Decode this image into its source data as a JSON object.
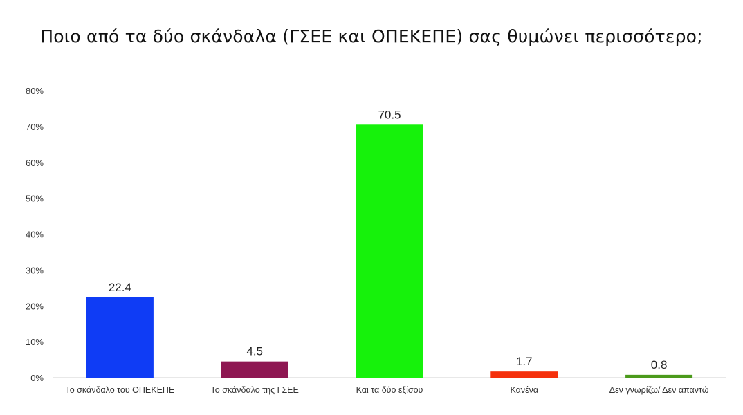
{
  "title": "Ποιο από τα δύο σκάνδαλα (ΓΣΕΕ και ΟΠΕΚΕΠΕ) σας θυμώνει περισσότερο;",
  "chart_data": {
    "type": "bar",
    "title": "Ποιο από τα δύο σκάνδαλα (ΓΣΕΕ και ΟΠΕΚΕΠΕ) σας θυμώνει περισσότερο;",
    "categories": [
      "Το σκάνδαλο του ΟΠΕΚΕΠΕ",
      "Το σκάνδαλο της ΓΣΕΕ",
      "Και τα δύο εξίσου",
      "Κανένα",
      "Δεν γνωρίζω/ Δεν απαντώ"
    ],
    "values": [
      22.4,
      4.5,
      70.5,
      1.7,
      0.8
    ],
    "data_labels": [
      "22.4",
      "4.5",
      "70.5",
      "1.7",
      "0.8"
    ],
    "colors": [
      "#0f3cf5",
      "#8e1752",
      "#16f20b",
      "#f5300c",
      "#4b9a1b"
    ],
    "ylim": [
      0,
      80
    ],
    "yticks": [
      0,
      10,
      20,
      30,
      40,
      50,
      60,
      70,
      80
    ],
    "ytick_labels": [
      "0%",
      "10%",
      "20%",
      "30%",
      "40%",
      "50%",
      "60%",
      "70%",
      "80%"
    ],
    "xlabel": "",
    "ylabel": "",
    "grid": false,
    "legend": "none"
  }
}
